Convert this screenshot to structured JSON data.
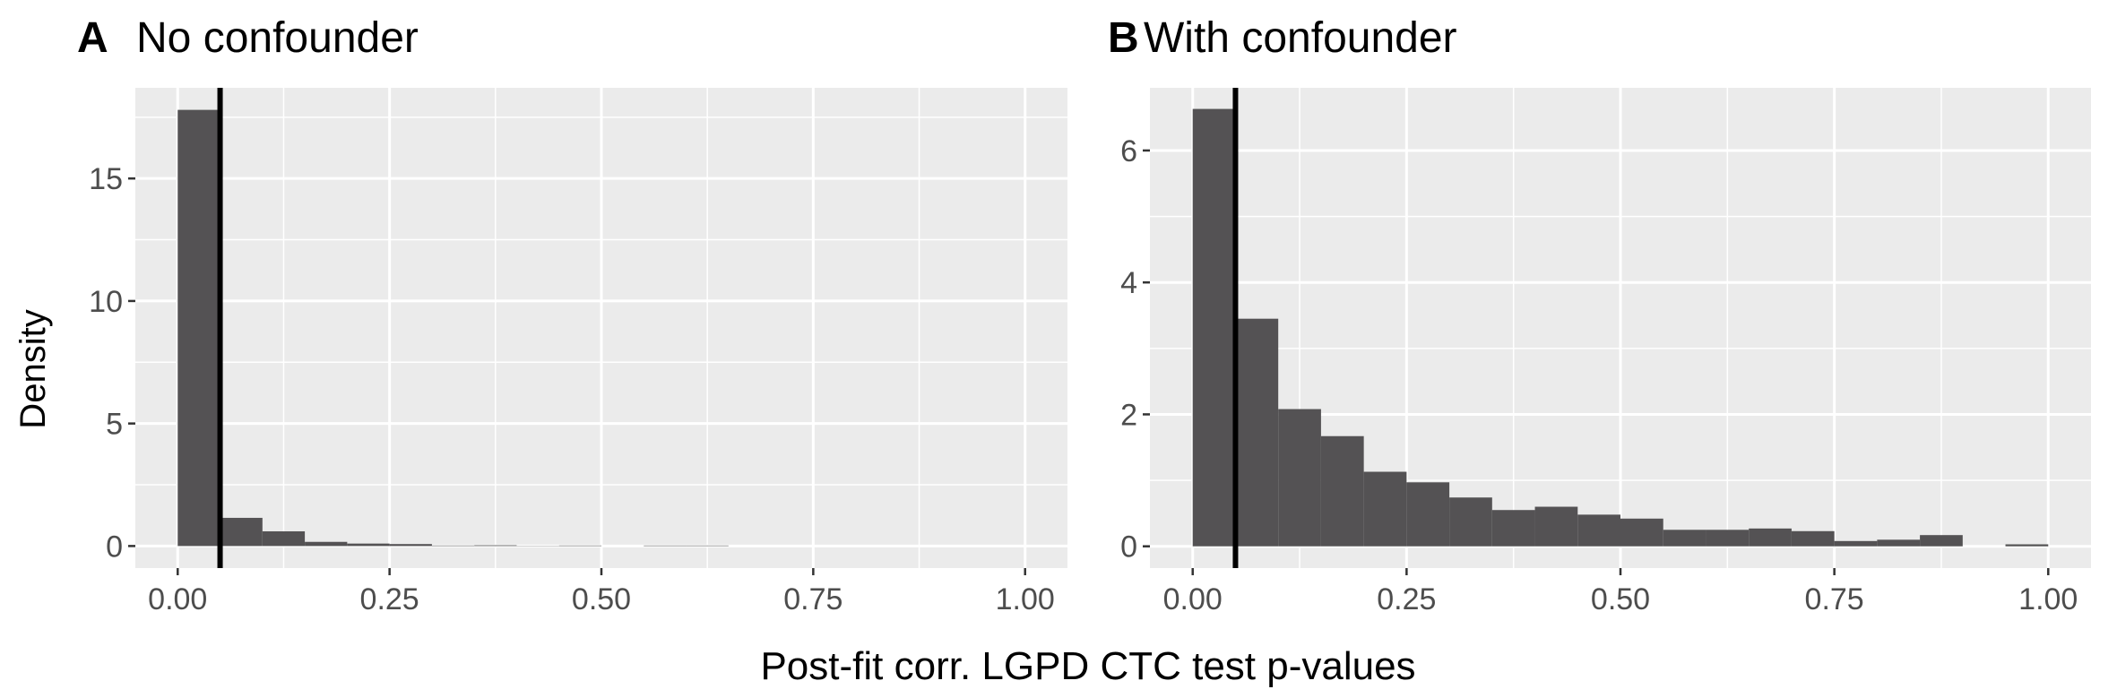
{
  "figure": {
    "ylabel": "Density",
    "xlabel": "Post-fit corr. LGPD CTC test p-values"
  },
  "colors": {
    "panel_bg": "#EBEBEB",
    "grid": "#FFFFFF",
    "bar": "#545254",
    "vline": "#000000",
    "tick_text": "#4D4D4D"
  },
  "chart_data": [
    {
      "type": "bar",
      "panel_letter": "A",
      "title": "No confounder",
      "bin_width": 0.05,
      "bin_start": 0,
      "values": [
        17.8,
        1.15,
        0.6,
        0.17,
        0.1,
        0.08,
        0.02,
        0.03,
        0.01,
        0.02,
        0.0,
        0.02,
        0.02,
        0.0,
        0.0,
        0.0,
        0.0,
        0.0,
        0.0,
        0.0
      ],
      "vline_x": 0.05,
      "xlim": [
        -0.05,
        1.05
      ],
      "ylim": [
        -0.9,
        18.7
      ],
      "x_ticks": [
        0,
        0.25,
        0.5,
        0.75,
        1
      ],
      "x_tick_labels": [
        "0.00",
        "0.25",
        "0.50",
        "0.75",
        "1.00"
      ],
      "y_ticks": [
        0,
        5,
        10,
        15
      ],
      "y_tick_labels": [
        "0",
        "5",
        "10",
        "15"
      ]
    },
    {
      "type": "bar",
      "panel_letter": "B",
      "title": "With confounder",
      "bin_width": 0.05,
      "bin_start": 0,
      "values": [
        6.63,
        3.45,
        2.08,
        1.67,
        1.13,
        0.97,
        0.74,
        0.55,
        0.6,
        0.48,
        0.42,
        0.25,
        0.25,
        0.27,
        0.23,
        0.08,
        0.1,
        0.17,
        0.0,
        0.03
      ],
      "vline_x": 0.05,
      "xlim": [
        -0.05,
        1.05
      ],
      "ylim": [
        -0.33,
        6.95
      ],
      "x_ticks": [
        0,
        0.25,
        0.5,
        0.75,
        1
      ],
      "x_tick_labels": [
        "0.00",
        "0.25",
        "0.50",
        "0.75",
        "1.00"
      ],
      "y_ticks": [
        0,
        2,
        4,
        6
      ],
      "y_tick_labels": [
        "0",
        "2",
        "4",
        "6"
      ]
    }
  ]
}
